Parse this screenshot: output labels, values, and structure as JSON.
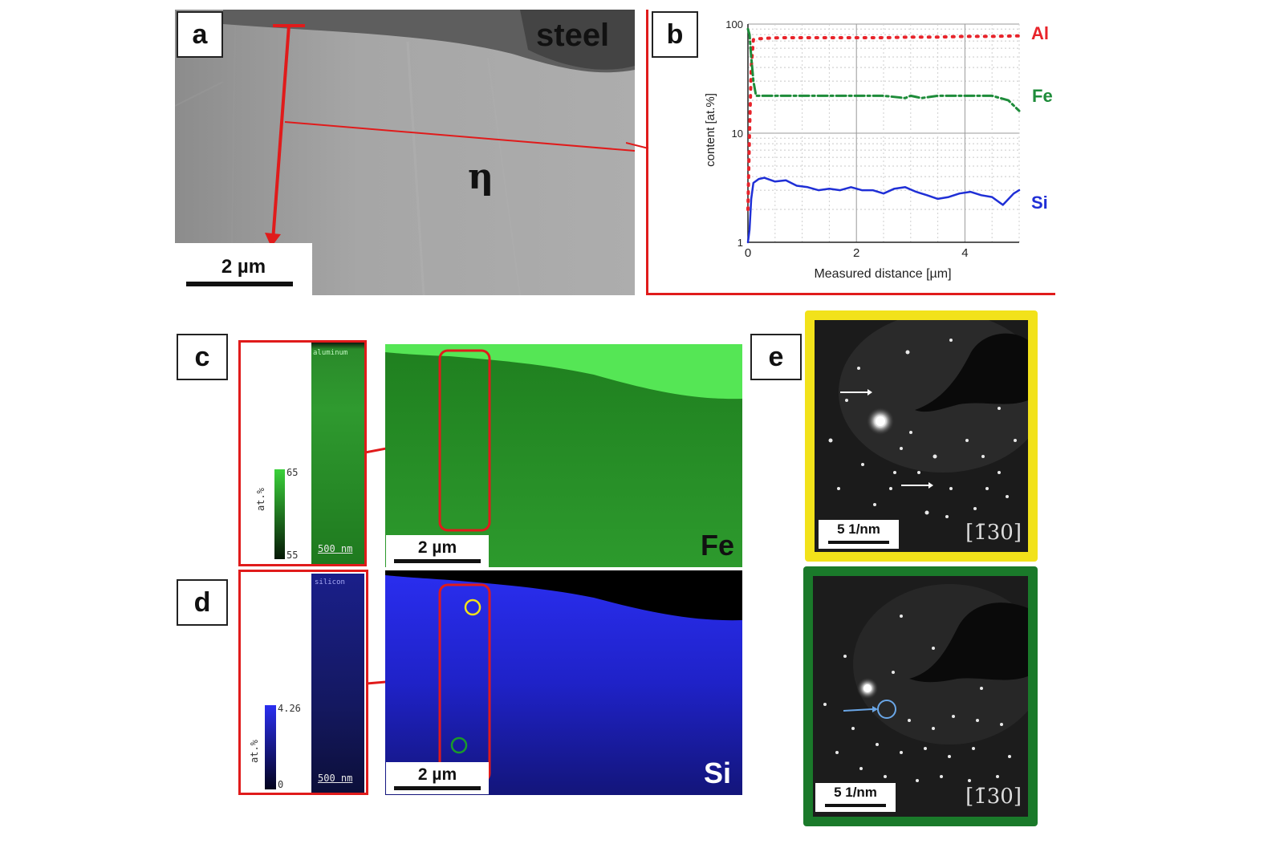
{
  "panels": {
    "a": {
      "label": "a",
      "region_label": "steel",
      "phase_label": "η",
      "scalebar": "2 µm"
    },
    "b": {
      "label": "b"
    },
    "c": {
      "label": "c",
      "inset_title": "aluminum",
      "colorbar_max": "65",
      "colorbar_min": "55",
      "colorbar_unit": "at.%",
      "inset_scalebar": "500 nm",
      "map_scalebar": "2 µm",
      "element": "Fe"
    },
    "d": {
      "label": "d",
      "inset_title": "silicon",
      "colorbar_max": "4.26",
      "colorbar_min": "0",
      "colorbar_unit": "at.%",
      "inset_scalebar": "500 nm",
      "map_scalebar": "2 µm",
      "element": "Si"
    },
    "e": {
      "label": "e",
      "top_scalebar": "5 1/nm",
      "top_zone_axis": "[1̄30]",
      "bottom_scalebar": "5 1/nm",
      "bottom_zone_axis": "[1̄30]"
    }
  },
  "colors": {
    "al": "#e8232a",
    "fe": "#1e8c3a",
    "si": "#1f2fd6",
    "highlight_red": "#e01b1b",
    "frame_yellow": "#f2e21a",
    "frame_green": "#1a7a2a"
  },
  "chart_data": {
    "type": "line",
    "xlabel": "Measured distance [µm]",
    "ylabel": "content [at.%]",
    "xlim": [
      0,
      5
    ],
    "ylim": [
      1,
      100
    ],
    "y_scale": "log",
    "x_ticks": [
      "0",
      "2",
      "4"
    ],
    "y_ticks": [
      "1",
      "10",
      "100"
    ],
    "grid": true,
    "series": [
      {
        "name": "Al",
        "color": "#e8232a",
        "style": "dotted",
        "x": [
          0,
          0.03,
          0.06,
          0.1,
          0.15,
          0.3,
          0.6,
          1.0,
          1.5,
          2.0,
          2.5,
          3.0,
          3.5,
          4.0,
          4.5,
          5.0
        ],
        "y": [
          2,
          10,
          40,
          72,
          73,
          74,
          75,
          75,
          75,
          75,
          75,
          76,
          76,
          77,
          77,
          78
        ]
      },
      {
        "name": "Fe",
        "color": "#1e8c3a",
        "style": "dashdot",
        "x": [
          0,
          0.03,
          0.06,
          0.1,
          0.15,
          0.3,
          0.6,
          1.0,
          1.5,
          2.0,
          2.5,
          2.9,
          3.0,
          3.2,
          3.5,
          4.0,
          4.5,
          4.8,
          5.0
        ],
        "y": [
          90,
          80,
          50,
          30,
          22,
          22,
          22,
          22,
          22,
          22,
          22,
          21,
          22,
          21,
          22,
          22,
          22,
          20,
          16
        ]
      },
      {
        "name": "Si",
        "color": "#1f2fd6",
        "style": "solid",
        "x": [
          0,
          0.03,
          0.06,
          0.1,
          0.2,
          0.3,
          0.5,
          0.7,
          0.9,
          1.1,
          1.3,
          1.5,
          1.7,
          1.9,
          2.1,
          2.3,
          2.5,
          2.7,
          2.9,
          3.1,
          3.3,
          3.5,
          3.7,
          3.9,
          4.1,
          4.3,
          4.5,
          4.7,
          4.9,
          5.0
        ],
        "y": [
          1,
          1.3,
          2.5,
          3.5,
          3.8,
          3.9,
          3.6,
          3.7,
          3.3,
          3.2,
          3.0,
          3.1,
          3.0,
          3.2,
          3.0,
          3.0,
          2.8,
          3.1,
          3.2,
          2.9,
          2.7,
          2.5,
          2.6,
          2.8,
          2.9,
          2.7,
          2.6,
          2.2,
          2.8,
          3.0
        ]
      }
    ]
  }
}
